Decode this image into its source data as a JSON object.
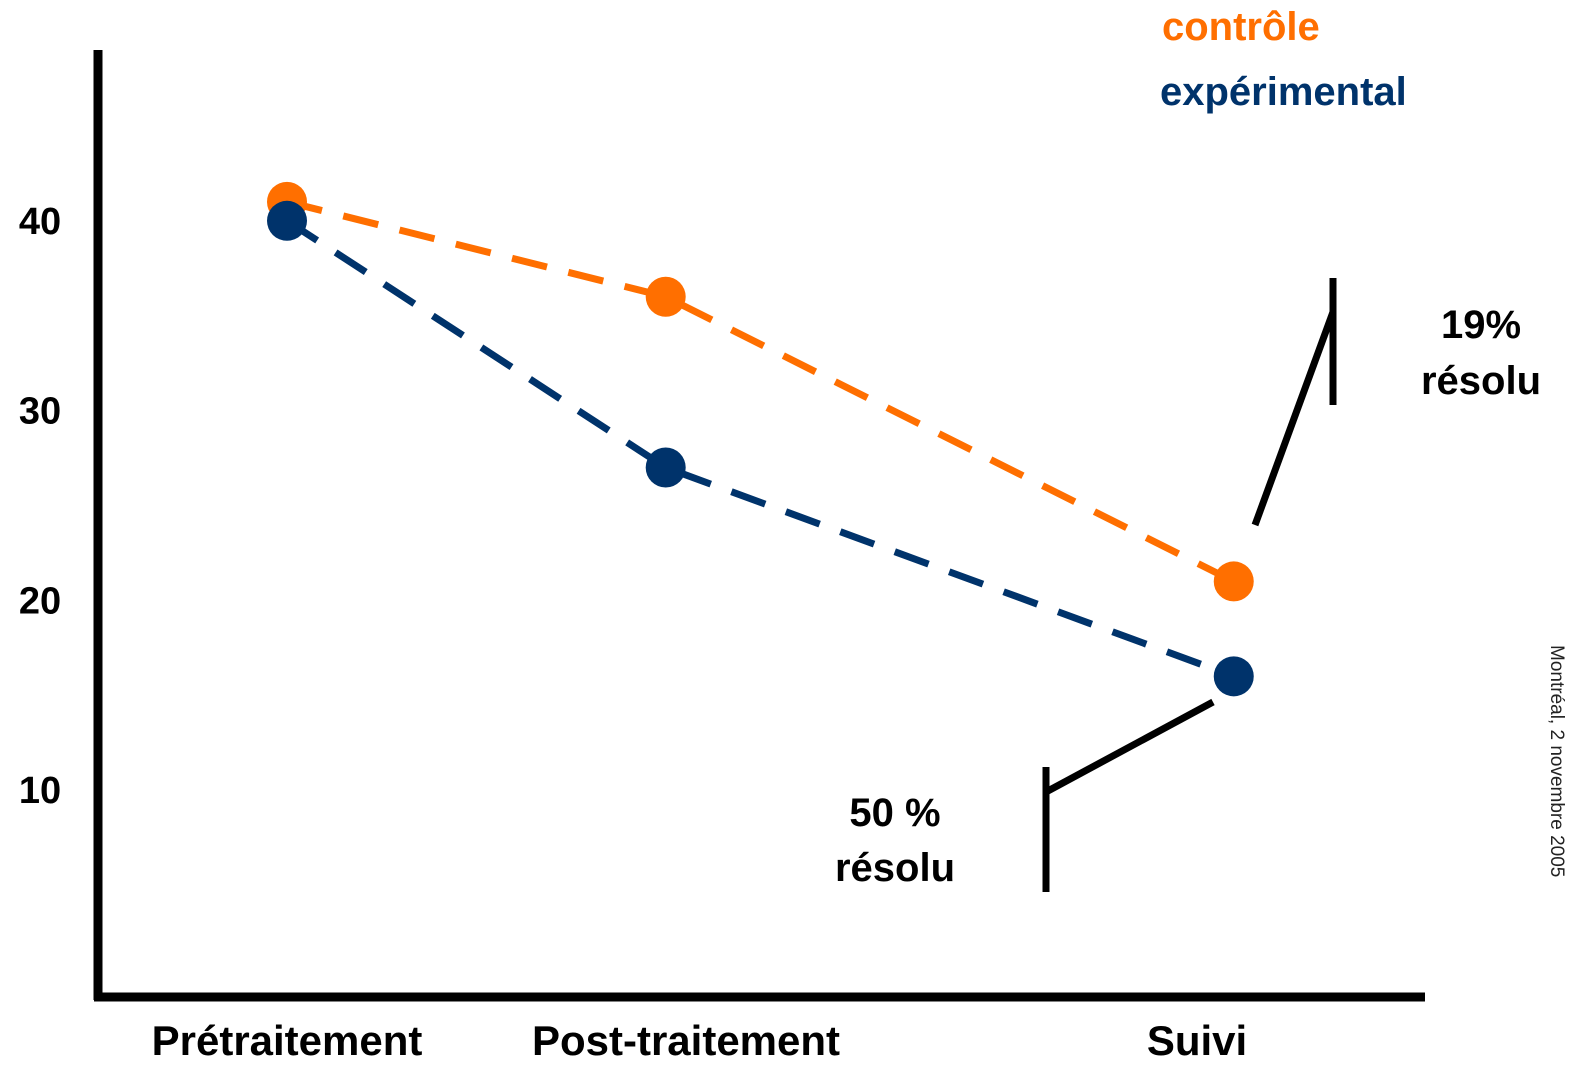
{
  "chart_data": {
    "type": "line",
    "categories": [
      "Prétraitement",
      "Post-traitement",
      "Suivi"
    ],
    "x_positions": [
      0,
      1,
      2.5
    ],
    "yticks": [
      10,
      20,
      30,
      40
    ],
    "ylim": [
      0,
      49
    ],
    "grid": false,
    "legend_position": "top-right",
    "series": [
      {
        "name": "contrôle",
        "color": "#ff6f00",
        "values": [
          41,
          36,
          21
        ]
      },
      {
        "name": "expérimental",
        "color": "#00336b",
        "values": [
          40,
          27,
          16
        ]
      }
    ],
    "annotations": [
      {
        "line1": "19%",
        "line2": "résolu",
        "series": "contrôle"
      },
      {
        "line1": "50 %",
        "line2": "résolu",
        "series": "expérimental"
      }
    ]
  },
  "footer": {
    "text": "Montréal, 2 novembre 2005"
  }
}
